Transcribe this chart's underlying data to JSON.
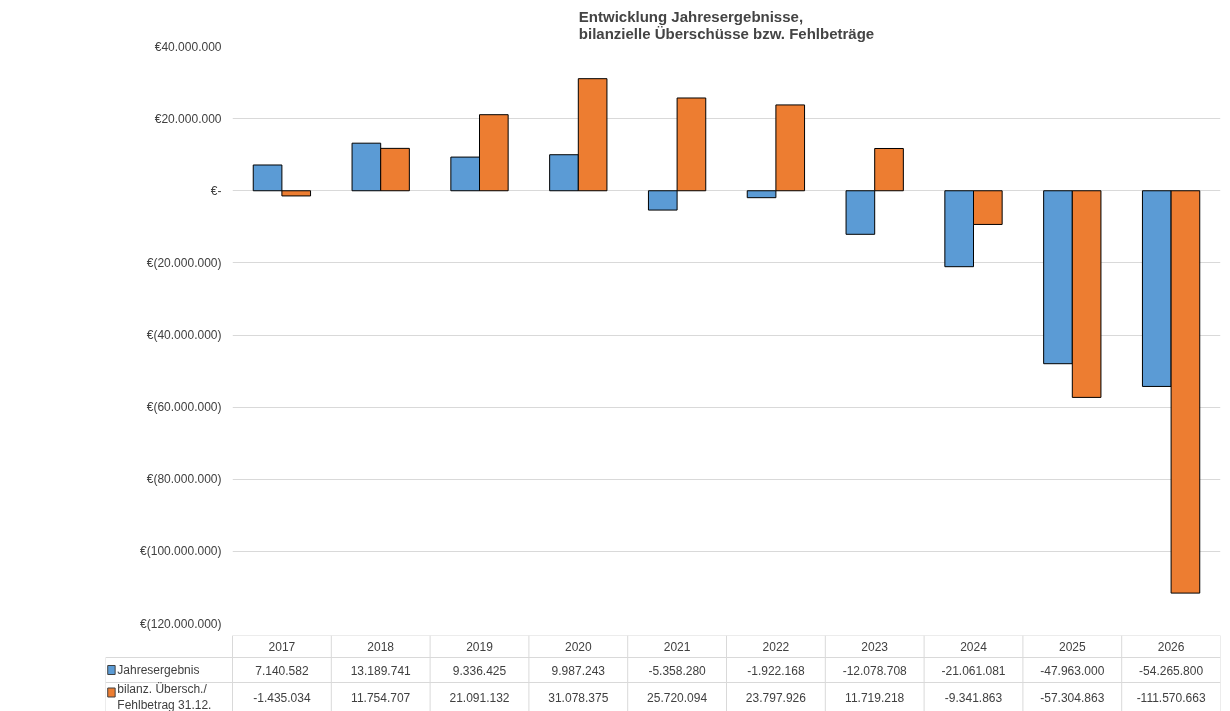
{
  "chart_data": {
    "type": "bar",
    "title": "Entwicklung Jahresergebnisse,\nbilanzielle Überschüsse bzw. Fehlbeträge",
    "categories": [
      "2017",
      "2018",
      "2019",
      "2020",
      "2021",
      "2022",
      "2023",
      "2024",
      "2025",
      "2026"
    ],
    "series": [
      {
        "name": "Jahresergebnis",
        "color": "#5b9bd5",
        "values": [
          7140582,
          13189741,
          9336425,
          9987243,
          -5358280,
          -1922168,
          -12078708,
          -21061081,
          -47963000,
          -54265800
        ],
        "value_labels": [
          "7.140.582",
          "13.189.741",
          "9.336.425",
          "9.987.243",
          "-5.358.280",
          "-1.922.168",
          "-12.078.708",
          "-21.061.081",
          "-47.963.000",
          "-54.265.800"
        ]
      },
      {
        "name": "bilanz. Übersch./ Fehlbetrag 31.12.",
        "color": "#ed7d31",
        "values": [
          -1435034,
          11754707,
          21091132,
          31078375,
          25720094,
          23797926,
          11719218,
          -9341863,
          -57304863,
          -111570663
        ],
        "value_labels": [
          "-1.435.034",
          "11.754.707",
          "21.091.132",
          "31.078.375",
          "25.720.094",
          "23.797.926",
          "11.719.218",
          "-9.341.863",
          "-57.304.863",
          "-111.570.663"
        ]
      }
    ],
    "ylim": [
      -120000000,
      40000000
    ],
    "yticks": [
      {
        "value": 40000000,
        "label": "€40.000.000"
      },
      {
        "value": 20000000,
        "label": "€20.000.000"
      },
      {
        "value": 0,
        "label": "€-"
      },
      {
        "value": -20000000,
        "label": "€(20.000.000)"
      },
      {
        "value": -40000000,
        "label": "€(40.000.000)"
      },
      {
        "value": -60000000,
        "label": "€(60.000.000)"
      },
      {
        "value": -80000000,
        "label": "€(80.000.000)"
      },
      {
        "value": -100000000,
        "label": "€(100.000.000)"
      },
      {
        "value": -120000000,
        "label": "€(120.000.000)"
      }
    ],
    "grid": "y",
    "legend": "bottom"
  }
}
